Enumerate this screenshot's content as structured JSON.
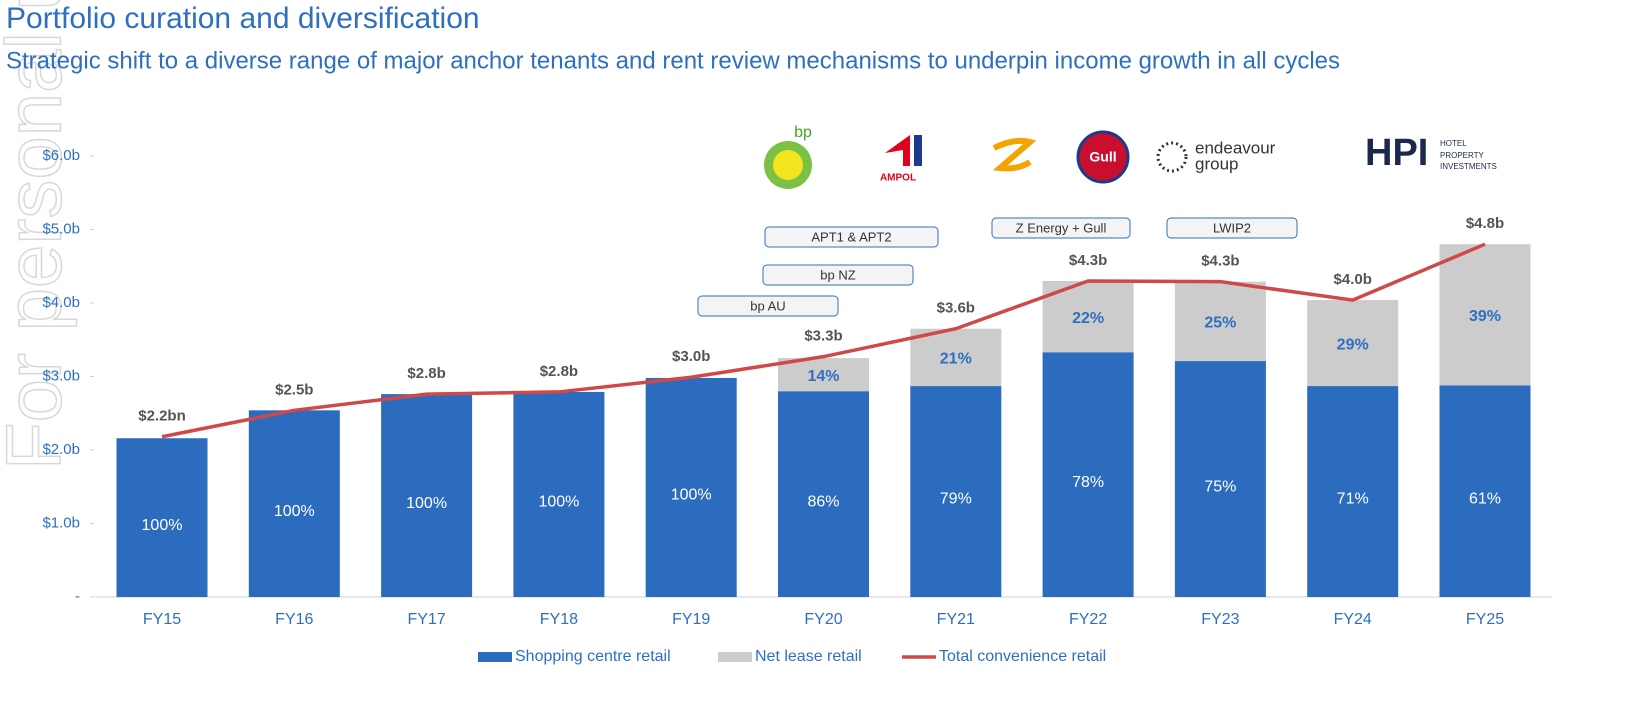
{
  "chart_data": {
    "type": "stacked-bar-line",
    "title": "Portfolio curation and diversification",
    "subtitle": "Strategic shift to a diverse range of major anchor tenants and rent review mechanisms to underpin income growth in all cycles",
    "watermark": "For personal use only",
    "categories": [
      "FY15",
      "FY16",
      "FY17",
      "FY18",
      "FY19",
      "FY20",
      "FY21",
      "FY22",
      "FY23",
      "FY24",
      "FY25"
    ],
    "series": [
      {
        "name": "Shopping centre retail",
        "color": "#2b6cbf",
        "kind": "bar",
        "values": [
          2.16,
          2.54,
          2.76,
          2.79,
          2.98,
          2.8,
          2.87,
          3.33,
          3.21,
          2.87,
          2.88
        ],
        "share_labels": [
          "100%",
          "100%",
          "100%",
          "100%",
          "100%",
          "86%",
          "79%",
          "78%",
          "75%",
          "71%",
          "61%"
        ]
      },
      {
        "name": "Net lease retail",
        "color": "#cccccc",
        "kind": "bar",
        "values": [
          null,
          null,
          null,
          null,
          null,
          0.45,
          0.78,
          0.97,
          1.08,
          1.17,
          1.92
        ],
        "share_labels": [
          null,
          null,
          null,
          null,
          null,
          "14%",
          "21%",
          "22%",
          "25%",
          "29%",
          "39%"
        ]
      },
      {
        "name": "Total convenience retail",
        "color": "#d04848",
        "kind": "line",
        "values": [
          2.18,
          2.54,
          2.76,
          2.79,
          2.99,
          3.27,
          3.65,
          4.3,
          4.29,
          4.04,
          4.8
        ],
        "value_labels": [
          "$2.2bn",
          "$2.5b",
          "$2.8b",
          "$2.8b",
          "$3.0b",
          "$3.3b",
          "$3.6b",
          "$4.3b",
          "$4.3b",
          "$4.0b",
          "$4.8b"
        ]
      }
    ],
    "ylim": [
      0,
      6
    ],
    "yticks": [
      {
        "value": 0,
        "label": "-"
      },
      {
        "value": 1,
        "label": "$1.0b"
      },
      {
        "value": 2,
        "label": "$2.0b"
      },
      {
        "value": 3,
        "label": "$3.0b"
      },
      {
        "value": 4,
        "label": "$4.0b"
      },
      {
        "value": 5,
        "label": "$5.0b"
      },
      {
        "value": 6,
        "label": "$6.0b"
      }
    ],
    "annotations": [
      "bp AU",
      "bp NZ",
      "APT1  & APT2",
      "Z Energy + Gull",
      "LWIP2"
    ],
    "logos": [
      "bp",
      "AMPOL",
      "Gull",
      "endeavour",
      "group",
      "HPI",
      "HOTEL",
      "PROPERTY",
      "INVESTMENTS"
    ]
  }
}
